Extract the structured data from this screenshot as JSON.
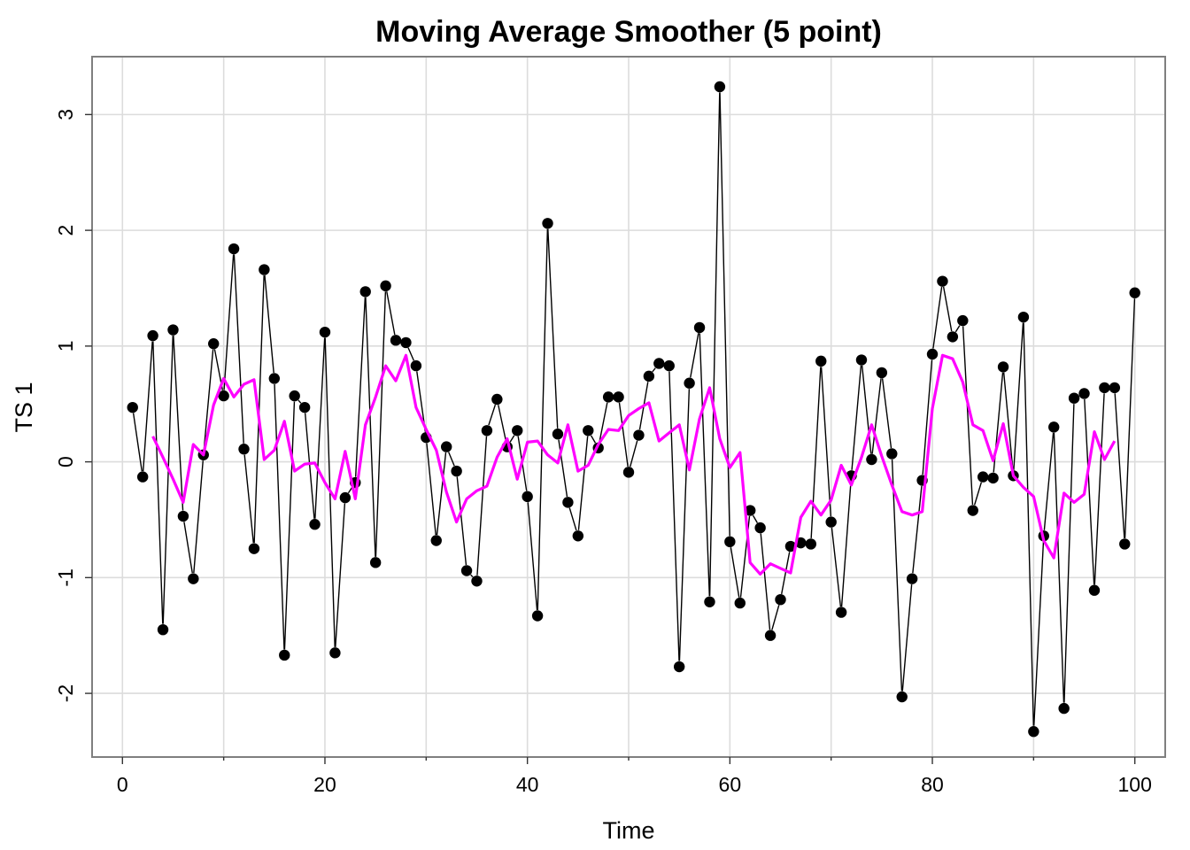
{
  "chart_data": {
    "type": "line",
    "title": "Moving Average Smoother (5 point)",
    "xlabel": "Time",
    "ylabel": "TS 1",
    "xlim": [
      -3,
      103
    ],
    "ylim": [
      -2.55,
      3.5
    ],
    "x_ticks": [
      0,
      20,
      40,
      60,
      80,
      100
    ],
    "x_minor_ticks": [
      10,
      30,
      50,
      70,
      90
    ],
    "y_ticks": [
      -2,
      -1,
      0,
      1,
      2,
      3
    ],
    "grid": true,
    "series": [
      {
        "type": "line+points",
        "color": "#000000",
        "x": [
          1,
          2,
          3,
          4,
          5,
          6,
          7,
          8,
          9,
          10,
          11,
          12,
          13,
          14,
          15,
          16,
          17,
          18,
          19,
          20,
          21,
          22,
          23,
          24,
          25,
          26,
          27,
          28,
          29,
          30,
          31,
          32,
          33,
          34,
          35,
          36,
          37,
          38,
          39,
          40,
          41,
          42,
          43,
          44,
          45,
          46,
          47,
          48,
          49,
          50,
          51,
          52,
          53,
          54,
          55,
          56,
          57,
          58,
          59,
          60,
          61,
          62,
          63,
          64,
          65,
          66,
          67,
          68,
          69,
          70,
          71,
          72,
          73,
          74,
          75,
          76,
          77,
          78,
          79,
          80,
          81,
          82,
          83,
          84,
          85,
          86,
          87,
          88,
          89,
          90,
          91,
          92,
          93,
          94,
          95,
          96,
          97,
          98,
          99,
          100
        ],
        "values": [
          0.47,
          -0.13,
          1.09,
          -1.45,
          1.14,
          -0.47,
          -1.01,
          0.06,
          1.02,
          0.57,
          1.84,
          0.11,
          -0.75,
          1.66,
          0.72,
          -1.67,
          0.57,
          0.47,
          -0.54,
          1.12,
          -1.65,
          -0.31,
          -0.18,
          1.47,
          -0.87,
          1.52,
          1.05,
          1.03,
          0.83,
          0.21,
          -0.68,
          0.13,
          -0.08,
          -0.94,
          -1.03,
          0.27,
          0.54,
          0.13,
          0.27,
          -0.3,
          -1.33,
          2.06,
          0.24,
          -0.35,
          -0.64,
          0.27,
          0.12,
          0.56,
          0.56,
          -0.09,
          0.23,
          0.74,
          0.85,
          0.83,
          -1.77,
          0.68,
          1.16,
          -1.21,
          3.24,
          -0.69,
          -1.22,
          -0.42,
          -0.57,
          -1.5,
          -1.19,
          -0.73,
          -0.7,
          -0.71,
          0.87,
          -0.52,
          -1.3,
          -0.12,
          0.88,
          0.02,
          0.77,
          0.07,
          -2.03,
          -1.01,
          -0.16,
          0.93,
          1.56,
          1.08,
          1.22,
          -0.42,
          -0.13,
          -0.14,
          0.82,
          -0.12,
          1.25,
          -2.33,
          -0.64,
          0.3,
          -2.13,
          0.55,
          0.59,
          -1.11,
          0.64,
          0.64,
          -0.71,
          1.46
        ]
      },
      {
        "type": "line",
        "color": "#ff00ff",
        "x": [
          3,
          4,
          5,
          6,
          7,
          8,
          9,
          10,
          11,
          12,
          13,
          14,
          15,
          16,
          17,
          18,
          19,
          20,
          21,
          22,
          23,
          24,
          25,
          26,
          27,
          28,
          29,
          30,
          31,
          32,
          33,
          34,
          35,
          36,
          37,
          38,
          39,
          40,
          41,
          42,
          43,
          44,
          45,
          46,
          47,
          48,
          49,
          50,
          51,
          52,
          53,
          54,
          55,
          56,
          57,
          58,
          59,
          60,
          61,
          62,
          63,
          64,
          65,
          66,
          67,
          68,
          69,
          70,
          71,
          72,
          73,
          74,
          75,
          76,
          77,
          78,
          79,
          80,
          81,
          82,
          83,
          84,
          85,
          86,
          87,
          88,
          89,
          90,
          91,
          92,
          93,
          94,
          95,
          96,
          97,
          98
        ],
        "values": [
          0.22,
          0.04,
          -0.15,
          -0.35,
          0.15,
          0.06,
          0.49,
          0.72,
          0.56,
          0.67,
          0.71,
          0.02,
          0.1,
          0.35,
          -0.08,
          -0.02,
          -0.01,
          -0.18,
          -0.32,
          0.09,
          -0.32,
          0.32,
          0.56,
          0.83,
          0.7,
          0.92,
          0.47,
          0.28,
          0.1,
          -0.26,
          -0.52,
          -0.32,
          -0.25,
          -0.21,
          0.04,
          0.2,
          -0.15,
          0.17,
          0.18,
          0.06,
          -0.01,
          0.32,
          -0.08,
          -0.03,
          0.15,
          0.28,
          0.27,
          0.4,
          0.46,
          0.51,
          0.18,
          0.25,
          0.32,
          -0.07,
          0.37,
          0.64,
          0.2,
          -0.05,
          0.08,
          -0.87,
          -0.97,
          -0.88,
          -0.92,
          -0.96,
          -0.48,
          -0.34,
          -0.46,
          -0.33,
          -0.03,
          -0.2,
          0.04,
          0.32,
          0.05,
          -0.2,
          -0.43,
          -0.46,
          -0.43,
          0.46,
          0.92,
          0.89,
          0.69,
          0.32,
          0.27,
          0.01,
          0.33,
          -0.12,
          -0.22,
          -0.3,
          -0.68,
          -0.83,
          -0.27,
          -0.35,
          -0.28,
          0.26,
          0.02,
          0.18
        ]
      }
    ]
  }
}
